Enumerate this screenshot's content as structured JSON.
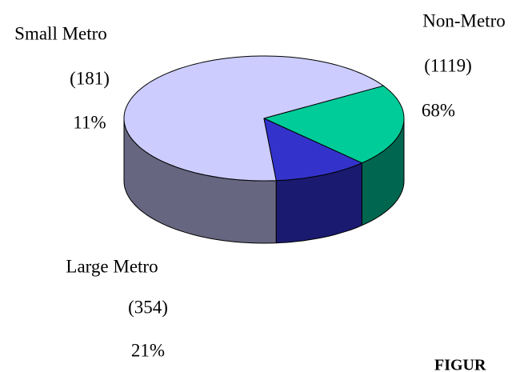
{
  "chart_data": {
    "type": "pie",
    "categories": [
      "Non-Metro",
      "Large Metro",
      "Small Metro"
    ],
    "values": [
      1119,
      354,
      181
    ],
    "value_labels": [
      "(1119)",
      "(354)",
      "(181)"
    ],
    "shares": [
      {
        "value": 68,
        "label": "68%"
      },
      {
        "value": 21,
        "label": "21%"
      },
      {
        "value": 11,
        "label": "11%"
      }
    ],
    "colors": [
      "#ccccff",
      "#00cc99",
      "#3333cc"
    ],
    "side_colors": [
      "#666680",
      "#006650",
      "#1a1a70"
    ]
  },
  "footer": "FIGUR"
}
